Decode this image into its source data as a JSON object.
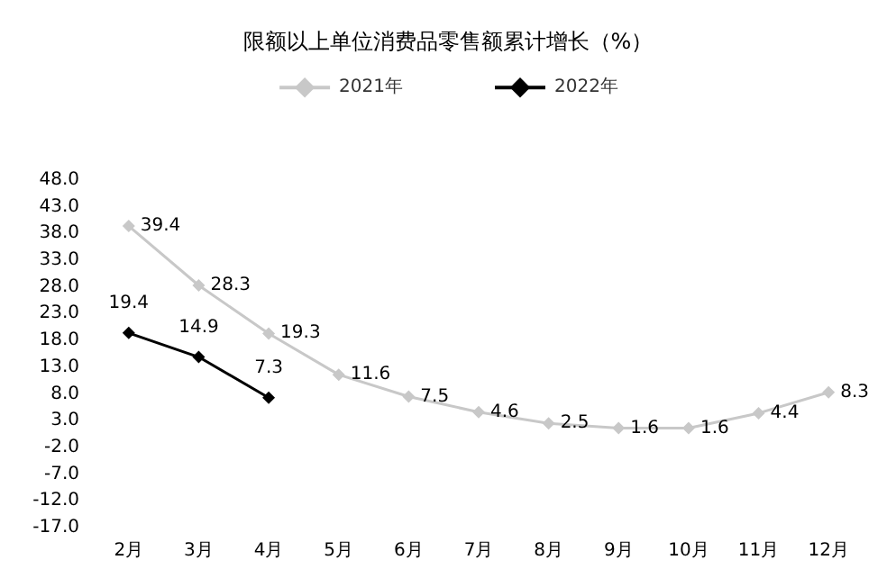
{
  "chart_data": {
    "type": "line",
    "title": "限额以上单位消费品零售额累计增长（%）",
    "categories": [
      "2月",
      "3月",
      "4月",
      "5月",
      "6月",
      "7月",
      "8月",
      "9月",
      "10月",
      "11月",
      "12月"
    ],
    "series": [
      {
        "name": "2021年",
        "color": "#c8c8c8",
        "values": [
          39.4,
          28.3,
          19.3,
          11.6,
          7.5,
          4.6,
          2.5,
          1.6,
          1.6,
          4.4,
          8.3
        ]
      },
      {
        "name": "2022年",
        "color": "#000000",
        "values": [
          19.4,
          14.9,
          7.3,
          null,
          null,
          null,
          null,
          null,
          null,
          null,
          null
        ]
      }
    ],
    "ylim": [
      -17,
      48
    ],
    "yticks": [
      {
        "value": -17,
        "label": "-17.0"
      },
      {
        "value": -12,
        "label": "-12.0"
      },
      {
        "value": -7,
        "label": "-7.0"
      },
      {
        "value": -2,
        "label": "-2.0"
      },
      {
        "value": 3,
        "label": "3.0"
      },
      {
        "value": 8,
        "label": "8.0"
      },
      {
        "value": 13,
        "label": "13.0"
      },
      {
        "value": 18,
        "label": "18.0"
      },
      {
        "value": 23,
        "label": "23.0"
      },
      {
        "value": 28,
        "label": "28.0"
      },
      {
        "value": 33,
        "label": "33.0"
      },
      {
        "value": 38,
        "label": "38.0"
      },
      {
        "value": 43,
        "label": "43.0"
      },
      {
        "value": 48,
        "label": "48.0"
      }
    ],
    "grid": false,
    "legend": "top",
    "marker": "diamond",
    "line_style": "solid",
    "data_labels": true
  }
}
